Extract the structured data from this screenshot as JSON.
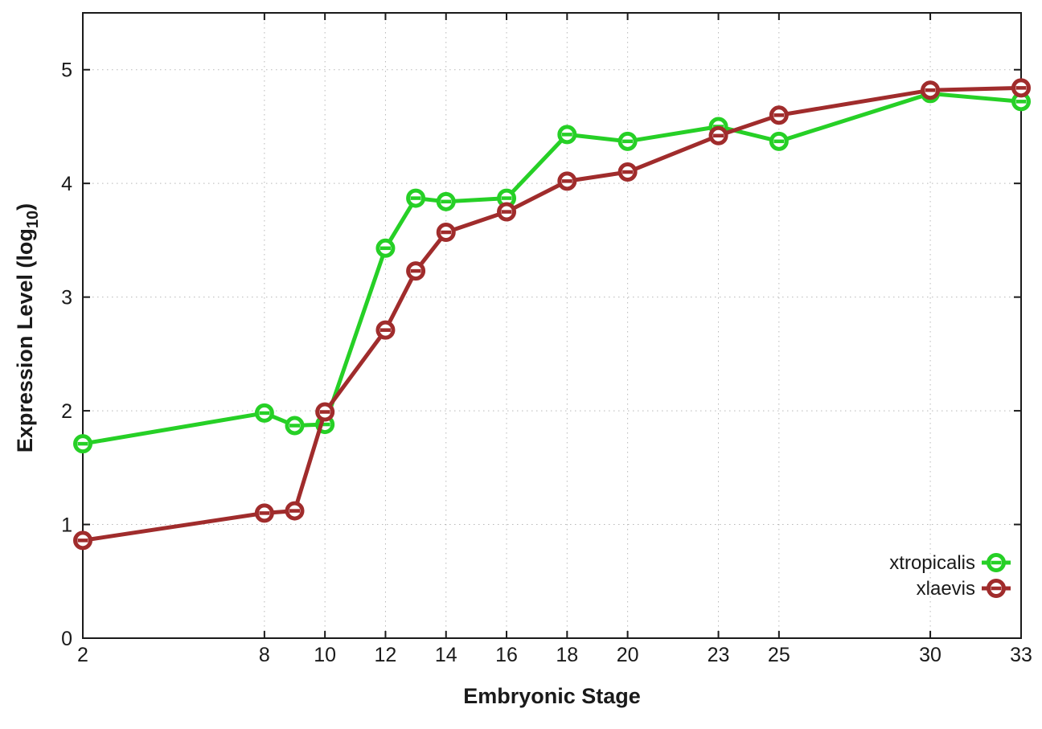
{
  "chart_data": {
    "type": "line",
    "title": "",
    "xlabel": "Embryonic Stage",
    "ylabel": {
      "main": "Expression Level (log",
      "subscript": "10",
      "suffix": ")"
    },
    "x": [
      2,
      8,
      9,
      10,
      12,
      13,
      14,
      16,
      18,
      20,
      23,
      25,
      30,
      33
    ],
    "series": [
      {
        "name": "xtropicalis",
        "color": "#26d026",
        "values": [
          1.71,
          1.98,
          1.87,
          1.88,
          3.43,
          3.87,
          3.84,
          3.87,
          4.43,
          4.37,
          4.5,
          4.37,
          4.79,
          4.72
        ]
      },
      {
        "name": "xlaevis",
        "color": "#a02c2c",
        "values": [
          0.86,
          1.1,
          1.12,
          1.99,
          2.71,
          3.23,
          3.57,
          3.75,
          4.02,
          4.1,
          4.42,
          4.6,
          4.82,
          4.84
        ]
      }
    ],
    "xticks": [
      2,
      8,
      10,
      12,
      14,
      16,
      18,
      20,
      23,
      25,
      30,
      33
    ],
    "yticks": [
      0,
      1,
      2,
      3,
      4,
      5
    ],
    "xlim": [
      2,
      33
    ],
    "ylim": [
      0,
      5.5
    ],
    "grid": true,
    "grid_style": "dotted",
    "legend_position": "bottom-right",
    "marker": "open-circle-with-center-dash",
    "colors": {
      "axis": "#1a1a1a",
      "tick_text": "#1a1a1a",
      "grid": "#b8b8b8",
      "background": "#ffffff"
    }
  }
}
